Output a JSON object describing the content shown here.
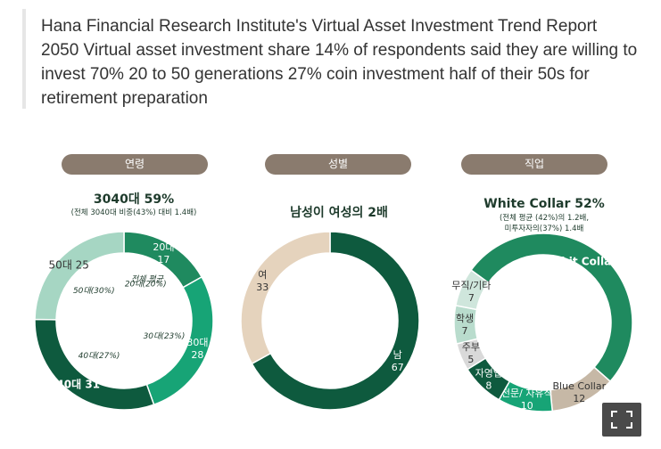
{
  "caption": "Hana Financial Research Institute's Virtual Asset Investment Trend Report 2050 Virtual asset investment share 14% of respondents said they are willing to invest 70% 20 to 50 generations 27% coin investment half of their 50s for retirement preparation",
  "icons": {
    "expand": "fullscreen-expand-icon"
  },
  "chart_data": [
    {
      "type": "donut",
      "title": "연령",
      "headline": "3040대 59%",
      "subtitle": "(전체 3040대 비중(43%) 대비 1.4배)",
      "center_label": "전체 평균",
      "series": [
        {
          "category": "20대",
          "value": 17,
          "label": "20대",
          "value_label": "17",
          "average": "20대(20%)",
          "color": "#1f8a5f"
        },
        {
          "category": "30대",
          "value": 28,
          "label": "30대",
          "value_label": "28",
          "average": "30대(23%)",
          "color": "#17a476"
        },
        {
          "category": "40대",
          "value": 31,
          "label": "40대 31",
          "average": "40대(27%)",
          "color": "#0e5a3e"
        },
        {
          "category": "50대",
          "value": 25,
          "label": "50대 25",
          "average": "50대(30%)",
          "color": "#a6d6c3"
        }
      ]
    },
    {
      "type": "donut",
      "title": "성별",
      "headline": "남성이 여성의 2배",
      "series": [
        {
          "category": "남",
          "value": 67,
          "label": "남",
          "value_label": "67",
          "color": "#0e5a3e"
        },
        {
          "category": "여",
          "value": 33,
          "label": "여",
          "value_label": "33",
          "color": "#e5d3bd"
        }
      ]
    },
    {
      "type": "donut",
      "title": "직업",
      "headline": "White Collar 52%",
      "subtitle_lines": [
        "(전체 평균 (42%)의 1.2배,",
        "미투자자의(37%) 1.4배"
      ],
      "series": [
        {
          "category": "White Collar",
          "value": 52,
          "label": "Whit Collar 52",
          "color": "#1f8a5f"
        },
        {
          "category": "Blue Collar",
          "value": 12,
          "label": "Blue Collar",
          "value_label": "12",
          "color": "#c6b8a6"
        },
        {
          "category": "전문/자유직",
          "value": 10,
          "label": "전문/ 자유직",
          "value_label": "10",
          "color": "#17a476"
        },
        {
          "category": "자영업",
          "value": 8,
          "label": "자영업",
          "value_label": "8",
          "color": "#0e5a3e"
        },
        {
          "category": "주부",
          "value": 5,
          "label": "주부",
          "value_label": "5",
          "color": "#d9d9d9"
        },
        {
          "category": "학생",
          "value": 7,
          "label": "학생",
          "value_label": "7",
          "color": "#b9dccd"
        },
        {
          "category": "무직/기타",
          "value": 7,
          "label": "무직/기타",
          "value_label": "7",
          "color": "#cfe6dc"
        }
      ]
    }
  ]
}
